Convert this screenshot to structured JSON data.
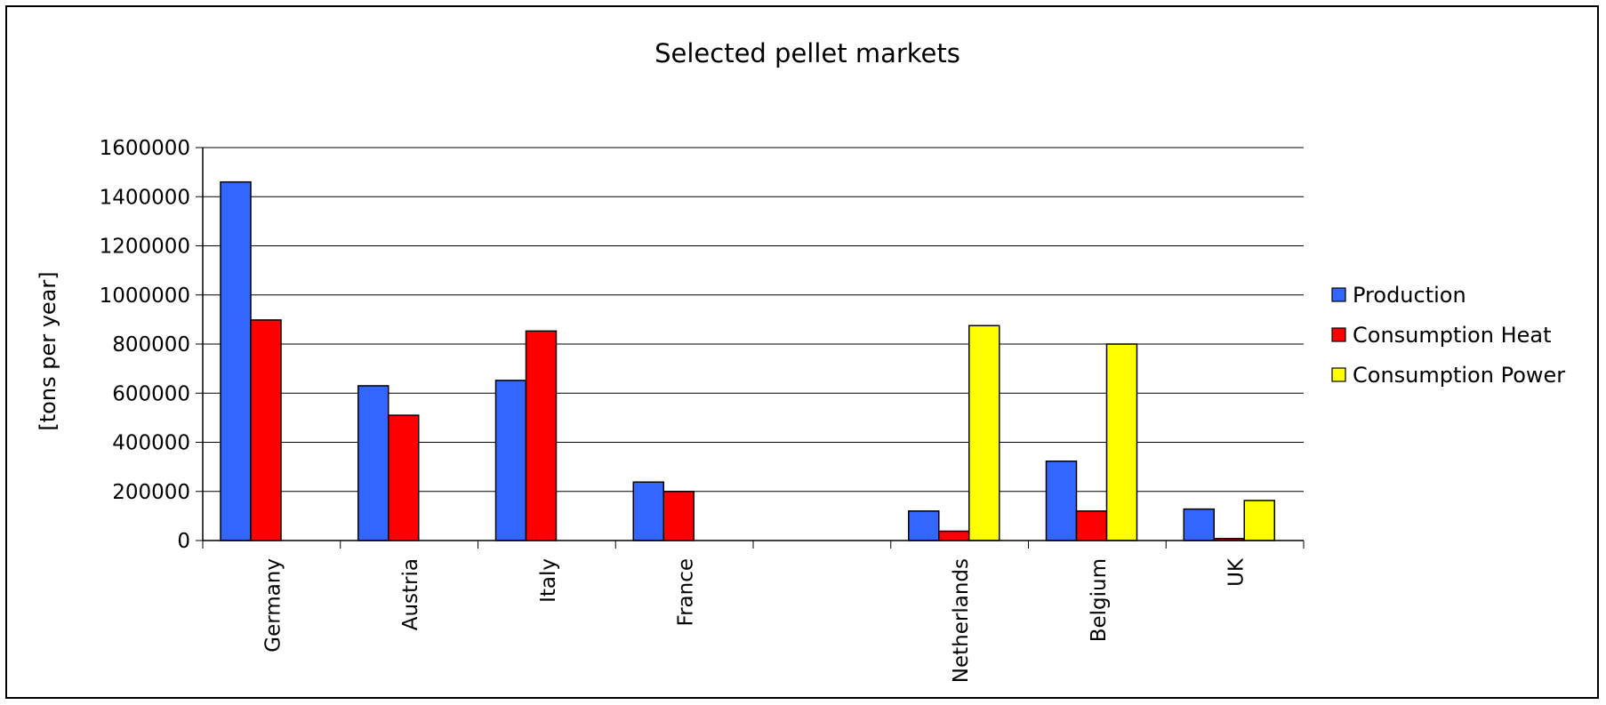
{
  "chart_data": {
    "type": "bar",
    "title": "Selected pellet markets",
    "xlabel": "",
    "ylabel": "[tons per year]",
    "ylim": [
      0,
      1600000
    ],
    "yticks": [
      0,
      200000,
      400000,
      600000,
      800000,
      1000000,
      1200000,
      1400000,
      1600000
    ],
    "categories": [
      "Germany",
      "Austria",
      "Italy",
      "France",
      "",
      "Netherlands",
      "Belgium",
      "UK"
    ],
    "series": [
      {
        "name": "Production",
        "color": "#3366ff",
        "values": [
          1460000,
          630000,
          652000,
          238000,
          null,
          120000,
          323000,
          128000
        ]
      },
      {
        "name": "Consumption Heat",
        "color": "#ff0000",
        "values": [
          898000,
          510000,
          853000,
          200000,
          null,
          38000,
          120000,
          8000
        ]
      },
      {
        "name": "Consumption Power",
        "color": "#ffff00",
        "values": [
          null,
          null,
          null,
          null,
          null,
          875000,
          800000,
          163000
        ]
      }
    ],
    "grid": true,
    "legend": "right"
  }
}
